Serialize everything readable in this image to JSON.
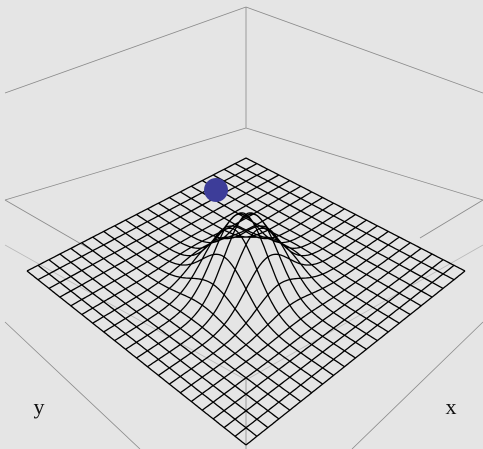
{
  "axes": {
    "x_label": "x",
    "y_label": "y"
  }
}
